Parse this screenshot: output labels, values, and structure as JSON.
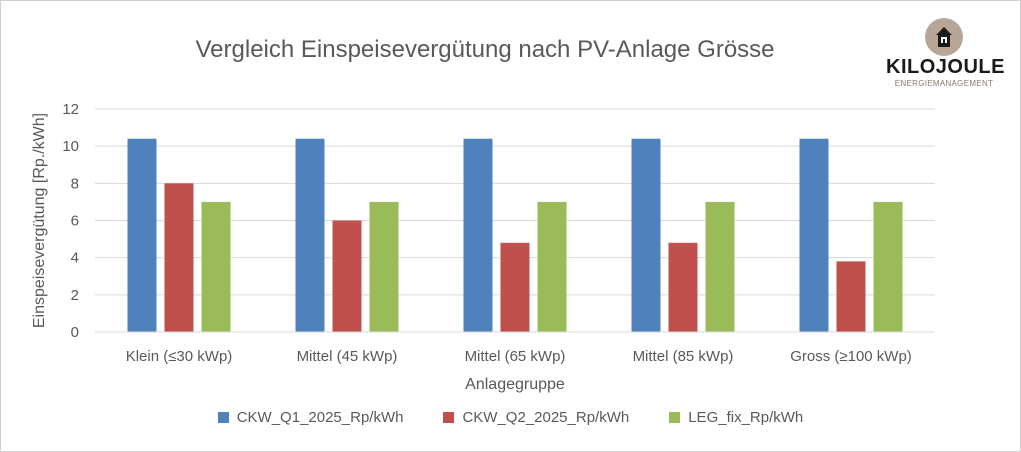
{
  "logo": {
    "name": "KILOJOULE",
    "tagline": "ENERGIEMANAGEMENT"
  },
  "chart_data": {
    "type": "bar",
    "title": "Vergleich Einspeisevergütung nach PV-Anlage Grösse",
    "xlabel": "Anlagegruppe",
    "ylabel": "Einspeisevergütung [Rp./kWh]",
    "ylim": [
      0,
      12
    ],
    "yticks": [
      0,
      2,
      4,
      6,
      8,
      10,
      12
    ],
    "grid": true,
    "legend_position": "bottom",
    "categories": [
      "Klein (≤30 kWp)",
      "Mittel (45 kWp)",
      "Mittel (65 kWp)",
      "Mittel (85 kWp)",
      "Gross (≥100 kWp)"
    ],
    "series": [
      {
        "name": "CKW_Q1_2025_Rp/kWh",
        "color": "#4f81bd",
        "values": [
          10.4,
          10.4,
          10.4,
          10.4,
          10.4
        ]
      },
      {
        "name": "CKW_Q2_2025_Rp/kWh",
        "color": "#c0504d",
        "values": [
          8.0,
          6.0,
          4.8,
          4.8,
          3.8
        ]
      },
      {
        "name": "LEG_fix_Rp/kWh",
        "color": "#9bbb59",
        "values": [
          7.0,
          7.0,
          7.0,
          7.0,
          7.0
        ]
      }
    ]
  }
}
